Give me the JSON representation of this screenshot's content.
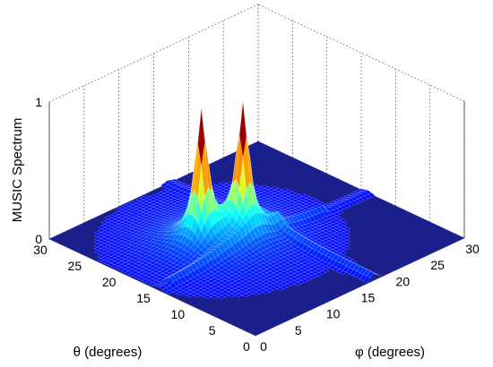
{
  "chart_data": {
    "type": "surface",
    "zlabel": "MUSIC Spectrum",
    "xlabel": "φ (degrees)",
    "ylabel": "θ (degrees)",
    "x_axis": {
      "label": "φ (degrees)",
      "ticks": [
        0,
        5,
        10,
        15,
        20,
        25,
        30
      ],
      "range": [
        0,
        30
      ]
    },
    "y_axis": {
      "label": "θ (degrees)",
      "ticks": [
        0,
        5,
        10,
        15,
        20,
        25,
        30
      ],
      "range": [
        0,
        30
      ]
    },
    "z_axis": {
      "label": "MUSIC Spectrum",
      "ticks": [
        0,
        1
      ],
      "range": [
        0,
        1
      ]
    },
    "peaks": [
      {
        "phi": 10,
        "theta": 18,
        "value": 1.0
      },
      {
        "phi": 14,
        "theta": 16,
        "value": 1.0
      }
    ],
    "ridges": [
      {
        "direction": "along-phi",
        "theta": 14,
        "level": 0.05
      },
      {
        "direction": "along-theta",
        "phi": 17,
        "level": 0.05
      }
    ],
    "background_level": 0.0,
    "colormap": "jet",
    "grid": true,
    "view": "isometric-3d"
  },
  "colors": {
    "floor": "#1a1f8c",
    "mesh": "#ffffff",
    "peak_top": "#cc7722",
    "peak_mid": "#33cccc"
  }
}
